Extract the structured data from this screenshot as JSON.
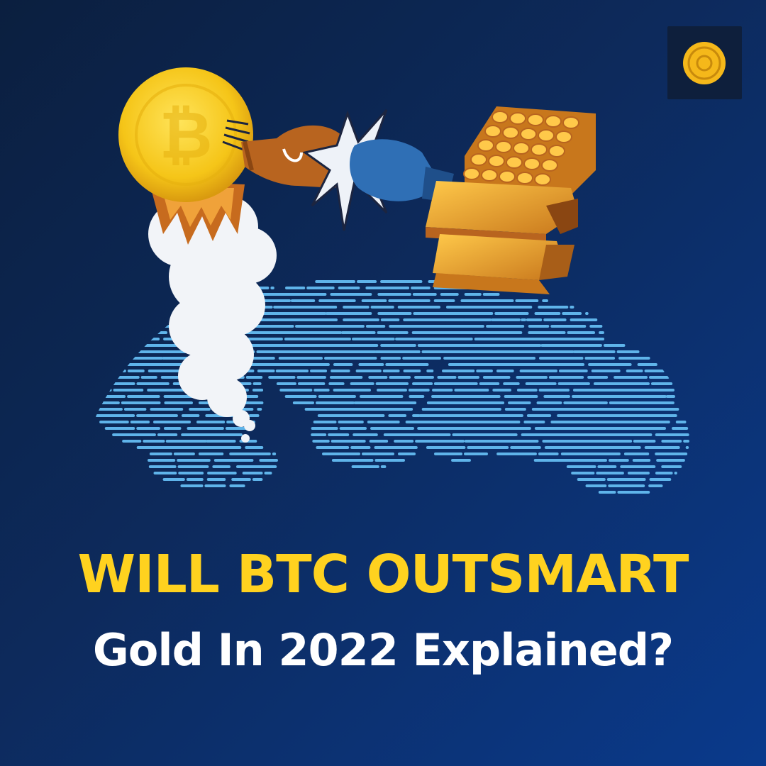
{
  "headline": {
    "line1": "WILL BTC OUTSMART",
    "line2": "Gold In 2022 Explained?"
  },
  "colors": {
    "background_dark": "#0b1f3f",
    "background_light": "#0a3a8c",
    "headline_yellow": "#ffd21f",
    "subline_white": "#ffffff",
    "globe_lines": "#5fb4ea",
    "bitcoin_gold": "#f5c518",
    "gold_bar": "#e0952a",
    "glove_brown": "#b8641f",
    "glove_blue": "#2f6fb5"
  },
  "icons": [
    "coin-logo-icon",
    "bitcoin-coin-icon",
    "rocket-flame-icon",
    "smoke-cloud-icon",
    "boxing-glove-icon",
    "gold-bars-icon",
    "globe-icon"
  ]
}
